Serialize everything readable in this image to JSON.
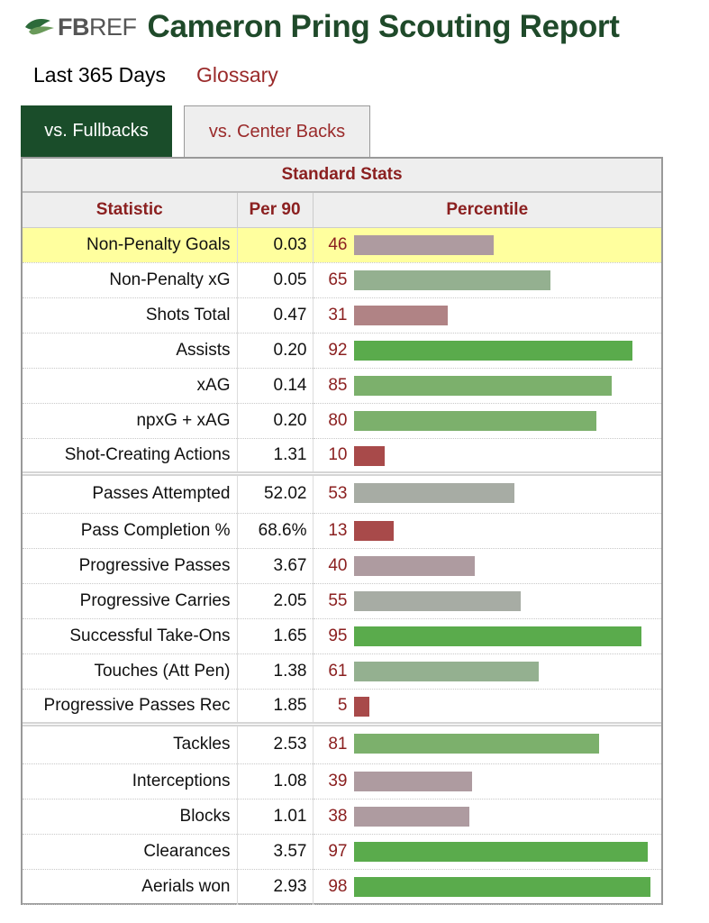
{
  "header": {
    "logo_text_bold": "FB",
    "logo_text_rest": "REF",
    "title": "Cameron Pring Scouting Report"
  },
  "subnav": {
    "period": "Last 365 Days",
    "glossary": "Glossary"
  },
  "tabs": [
    {
      "label": "vs. Fullbacks",
      "active": true
    },
    {
      "label": "vs. Center Backs",
      "active": false
    }
  ],
  "card": {
    "title": "Standard Stats",
    "columns": [
      "Statistic",
      "Per 90",
      "Percentile"
    ]
  },
  "colors": {
    "green_strong": "#5aab4c",
    "green_mid": "#7cb06c",
    "green_soft": "#94b090",
    "grey": "#a7aca4",
    "mauve": "#ae9ba0",
    "rose": "#b08385",
    "red": "#a84a4a"
  },
  "rows": [
    {
      "stat": "Non-Penalty Goals",
      "per90": "0.03",
      "pct": 46,
      "highlight": true,
      "group_start": false
    },
    {
      "stat": "Non-Penalty xG",
      "per90": "0.05",
      "pct": 65,
      "highlight": false,
      "group_start": false
    },
    {
      "stat": "Shots Total",
      "per90": "0.47",
      "pct": 31,
      "highlight": false,
      "group_start": false
    },
    {
      "stat": "Assists",
      "per90": "0.20",
      "pct": 92,
      "highlight": false,
      "group_start": false
    },
    {
      "stat": "xAG",
      "per90": "0.14",
      "pct": 85,
      "highlight": false,
      "group_start": false
    },
    {
      "stat": "npxG + xAG",
      "per90": "0.20",
      "pct": 80,
      "highlight": false,
      "group_start": false
    },
    {
      "stat": "Shot-Creating Actions",
      "per90": "1.31",
      "pct": 10,
      "highlight": false,
      "group_start": false
    },
    {
      "stat": "Passes Attempted",
      "per90": "52.02",
      "pct": 53,
      "highlight": false,
      "group_start": true
    },
    {
      "stat": "Pass Completion %",
      "per90": "68.6%",
      "pct": 13,
      "highlight": false,
      "group_start": false
    },
    {
      "stat": "Progressive Passes",
      "per90": "3.67",
      "pct": 40,
      "highlight": false,
      "group_start": false
    },
    {
      "stat": "Progressive Carries",
      "per90": "2.05",
      "pct": 55,
      "highlight": false,
      "group_start": false
    },
    {
      "stat": "Successful Take-Ons",
      "per90": "1.65",
      "pct": 95,
      "highlight": false,
      "group_start": false
    },
    {
      "stat": "Touches (Att Pen)",
      "per90": "1.38",
      "pct": 61,
      "highlight": false,
      "group_start": false
    },
    {
      "stat": "Progressive Passes Rec",
      "per90": "1.85",
      "pct": 5,
      "highlight": false,
      "group_start": false
    },
    {
      "stat": "Tackles",
      "per90": "2.53",
      "pct": 81,
      "highlight": false,
      "group_start": true
    },
    {
      "stat": "Interceptions",
      "per90": "1.08",
      "pct": 39,
      "highlight": false,
      "group_start": false
    },
    {
      "stat": "Blocks",
      "per90": "1.01",
      "pct": 38,
      "highlight": false,
      "group_start": false
    },
    {
      "stat": "Clearances",
      "per90": "3.57",
      "pct": 97,
      "highlight": false,
      "group_start": false
    },
    {
      "stat": "Aerials won",
      "per90": "2.93",
      "pct": 98,
      "highlight": false,
      "group_start": false
    }
  ]
}
